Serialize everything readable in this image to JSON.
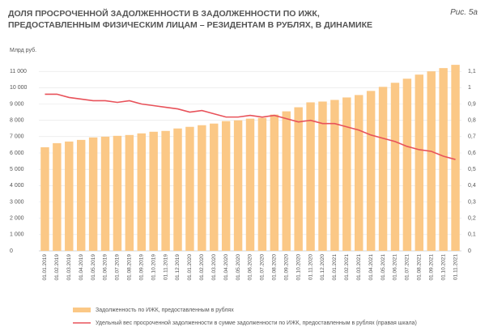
{
  "chart_data": {
    "type": "bar",
    "title": "ДОЛЯ ПРОСРОЧЕННОЙ ЗАДОЛЖЕННОСТИ В ЗАДОЛЖЕННОСТИ ПО ИЖК, ПРЕДОСТАВЛЕННЫМ ФИЗИЧЕСКИМ ЛИЦАМ – РЕЗИДЕНТАМ В РУБЛЯХ, В ДИНАМИКЕ",
    "figure_label": "Рис. 5а",
    "y_label": "Млрд руб.",
    "categories": [
      "01.01.2019",
      "01.02.2019",
      "01.03.2019",
      "01.04.2019",
      "01.05.2019",
      "01.06.2019",
      "01.07.2019",
      "01.08.2019",
      "01.09.2019",
      "01.10.2019",
      "01.11.2019",
      "01.12.2019",
      "01.01.2020",
      "01.02.2020",
      "01.03.2020",
      "01.04.2020",
      "01.05.2020",
      "01.06.2020",
      "01.07.2020",
      "01.08.2020",
      "01.09.2020",
      "01.10.2020",
      "01.11.2020",
      "01.12.2020",
      "01.01.2021",
      "01.02.2021",
      "01.03.2021",
      "01.04.2021",
      "01.05.2021",
      "01.06.2021",
      "01.07.2021",
      "01.08.2021",
      "01.09.2021",
      "01.10.2021",
      "01.11.2021"
    ],
    "series": [
      {
        "name": "Задолженность по ИЖК, предоставленным в рублях",
        "type": "bar",
        "color": "#fbc886",
        "values": [
          6350,
          6600,
          6700,
          6800,
          6950,
          7000,
          7050,
          7100,
          7200,
          7300,
          7350,
          7500,
          7600,
          7700,
          7800,
          7950,
          8000,
          8100,
          8150,
          8350,
          8550,
          8800,
          9100,
          9150,
          9250,
          9400,
          9550,
          9800,
          10050,
          10300,
          10550,
          10800,
          11000,
          11200,
          11400
        ]
      },
      {
        "name": "Удельный вес просроченной задолженности в сумме задолженности по ИЖК, предоставленным в рублях (правая шкала)",
        "type": "line",
        "axis": "y2",
        "color": "#e8525a",
        "values": [
          0.96,
          0.96,
          0.94,
          0.93,
          0.92,
          0.92,
          0.91,
          0.92,
          0.9,
          0.89,
          0.88,
          0.87,
          0.85,
          0.86,
          0.84,
          0.82,
          0.82,
          0.83,
          0.82,
          0.83,
          0.81,
          0.79,
          0.8,
          0.78,
          0.78,
          0.76,
          0.74,
          0.71,
          0.69,
          0.67,
          0.64,
          0.62,
          0.61,
          0.58,
          0.56
        ]
      }
    ],
    "ylim": [
      0,
      12000
    ],
    "yticks": [
      0,
      {
        "value": 1000,
        "label": "1 000"
      },
      {
        "value": 2000,
        "label": "2 000"
      },
      {
        "value": 3000,
        "label": "3 000"
      },
      {
        "value": 4000,
        "label": "4 000"
      },
      {
        "value": 5000,
        "label": "5 000"
      },
      {
        "value": 6000,
        "label": "6 000"
      },
      {
        "value": 7000,
        "label": "7 000"
      },
      {
        "value": 8000,
        "label": "8 000"
      },
      {
        "value": 9000,
        "label": "9 000"
      },
      {
        "value": 10000,
        "label": "10 000"
      },
      {
        "value": 11000,
        "label": "11 000"
      }
    ],
    "y2lim": [
      0,
      1.2
    ],
    "y2ticks": [
      0,
      {
        "value": 0.1,
        "label": "0,1"
      },
      {
        "value": 0.2,
        "label": "0,2"
      },
      {
        "value": 0.3,
        "label": "0,3"
      },
      {
        "value": 0.4,
        "label": "0,4"
      },
      {
        "value": 0.5,
        "label": "0,5"
      },
      {
        "value": 0.6,
        "label": "0,6"
      },
      {
        "value": 0.7,
        "label": "0,7"
      },
      {
        "value": 0.8,
        "label": "0,8"
      },
      {
        "value": 0.9,
        "label": "0,9"
      },
      1,
      {
        "value": 1.1,
        "label": "1,1"
      }
    ],
    "grid": true
  }
}
